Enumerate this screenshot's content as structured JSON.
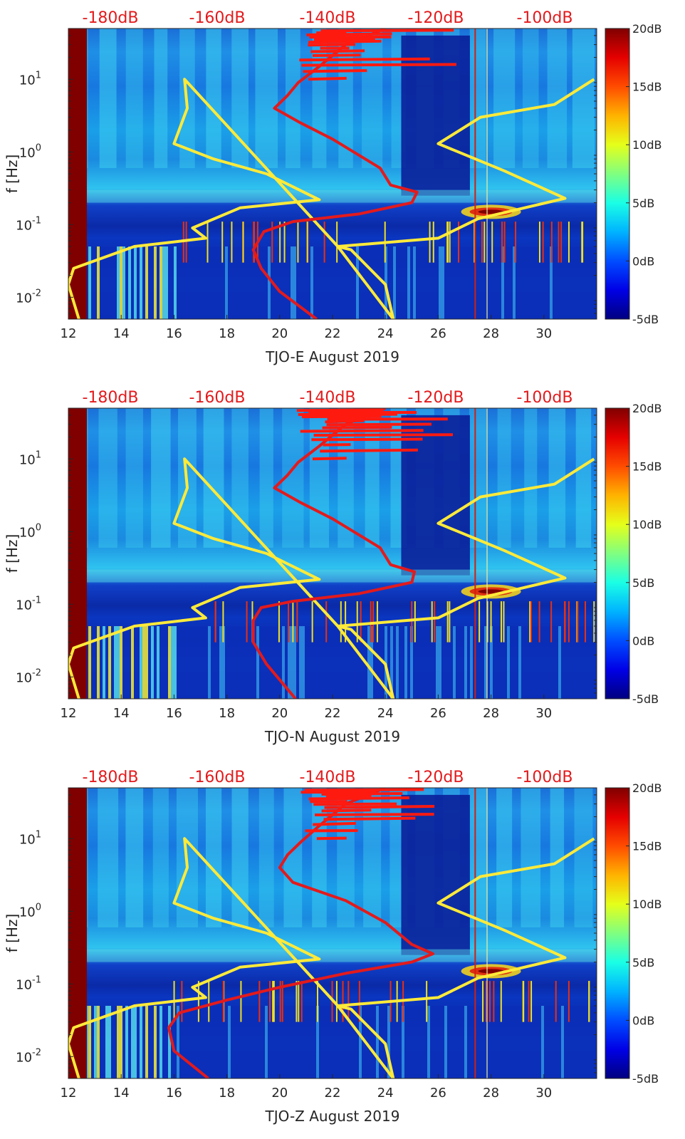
{
  "chart_data": [
    {
      "type": "heatmap",
      "title": "",
      "xlabel": "TJO-E August 2019",
      "ylabel": "f [Hz]",
      "xlim": [
        12,
        32
      ],
      "ylim": [
        0.005,
        50
      ],
      "xticks": [
        "12",
        "14",
        "16",
        "18",
        "20",
        "22",
        "24",
        "26",
        "28",
        "30"
      ],
      "yticks": [
        "10^-2",
        "10^-1",
        "10^0",
        "10^1"
      ],
      "top_axis_labels": [
        "-180dB",
        "-160dB",
        "-140dB",
        "-120dB",
        "-100dB"
      ],
      "colorbar": {
        "labels": [
          "20dB",
          "15dB",
          "10dB",
          "5dB",
          "0dB",
          "-5dB"
        ],
        "range": [
          -5,
          20
        ]
      },
      "series": [
        {
          "name": "yellow noise model",
          "color": "#ffea3a",
          "points": [
            [
              12.4,
              0.005
            ],
            [
              12.0,
              0.015
            ],
            [
              12.2,
              0.025
            ],
            [
              14.5,
              0.05
            ],
            [
              17.2,
              0.065
            ],
            [
              16.7,
              0.09
            ],
            [
              18.5,
              0.17
            ],
            [
              21.5,
              0.22
            ],
            [
              19.5,
              0.5
            ],
            [
              17.5,
              0.8
            ],
            [
              16.0,
              1.3
            ],
            [
              16.5,
              4
            ],
            [
              16.4,
              10
            ],
            [
              22.2,
              0.05
            ],
            [
              22.7,
              0.045
            ],
            [
              24.0,
              0.015
            ],
            [
              24.3,
              0.005
            ],
            [
              22.2,
              0.05
            ],
            [
              26.0,
              0.065
            ],
            [
              27.5,
              0.12
            ],
            [
              30.8,
              0.23
            ],
            [
              28.5,
              0.55
            ],
            [
              26.0,
              1.3
            ],
            [
              27.6,
              3
            ],
            [
              30.4,
              4.5
            ],
            [
              31.9,
              10
            ]
          ]
        },
        {
          "name": "red site noise",
          "color": "#e31a1c",
          "points": [
            [
              21.4,
              0.005
            ],
            [
              20.0,
              0.012
            ],
            [
              19.3,
              0.025
            ],
            [
              19.0,
              0.045
            ],
            [
              19.4,
              0.08
            ],
            [
              20.5,
              0.11
            ],
            [
              23.0,
              0.14
            ],
            [
              25.0,
              0.2
            ],
            [
              25.2,
              0.28
            ],
            [
              24.2,
              0.35
            ],
            [
              23.8,
              0.6
            ],
            [
              22.0,
              1.5
            ],
            [
              20.8,
              2.5
            ],
            [
              19.8,
              4
            ],
            [
              20.3,
              6
            ],
            [
              20.7,
              9
            ],
            [
              21.5,
              15
            ],
            [
              22.5,
              30
            ],
            [
              24.0,
              50
            ]
          ]
        }
      ]
    },
    {
      "type": "heatmap",
      "title": "",
      "xlabel": "TJO-N August 2019",
      "ylabel": "f [Hz]",
      "xlim": [
        12,
        32
      ],
      "ylim": [
        0.005,
        50
      ],
      "xticks": [
        "12",
        "14",
        "16",
        "18",
        "20",
        "22",
        "24",
        "26",
        "28",
        "30"
      ],
      "yticks": [
        "10^-2",
        "10^-1",
        "10^0",
        "10^1"
      ],
      "top_axis_labels": [
        "-180dB",
        "-160dB",
        "-140dB",
        "-120dB",
        "-100dB"
      ],
      "colorbar": {
        "labels": [
          "20dB",
          "15dB",
          "10dB",
          "5dB",
          "0dB",
          "-5dB"
        ],
        "range": [
          -5,
          20
        ]
      },
      "series": [
        {
          "name": "yellow noise model",
          "color": "#ffea3a",
          "points": [
            [
              12.4,
              0.005
            ],
            [
              12.0,
              0.015
            ],
            [
              12.2,
              0.025
            ],
            [
              14.5,
              0.05
            ],
            [
              17.2,
              0.065
            ],
            [
              16.7,
              0.09
            ],
            [
              18.5,
              0.17
            ],
            [
              21.5,
              0.22
            ],
            [
              19.5,
              0.5
            ],
            [
              17.5,
              0.8
            ],
            [
              16.0,
              1.3
            ],
            [
              16.5,
              4
            ],
            [
              16.4,
              10
            ],
            [
              22.2,
              0.05
            ],
            [
              22.7,
              0.045
            ],
            [
              24.0,
              0.015
            ],
            [
              24.3,
              0.005
            ],
            [
              22.2,
              0.05
            ],
            [
              26.0,
              0.065
            ],
            [
              27.5,
              0.12
            ],
            [
              30.8,
              0.23
            ],
            [
              28.5,
              0.55
            ],
            [
              26.0,
              1.3
            ],
            [
              27.6,
              3
            ],
            [
              30.4,
              4.5
            ],
            [
              31.9,
              10
            ]
          ]
        },
        {
          "name": "red site noise",
          "color": "#e31a1c",
          "points": [
            [
              20.6,
              0.005
            ],
            [
              19.5,
              0.015
            ],
            [
              19.0,
              0.03
            ],
            [
              19.0,
              0.06
            ],
            [
              19.3,
              0.09
            ],
            [
              20.5,
              0.11
            ],
            [
              23.0,
              0.14
            ],
            [
              25.0,
              0.2
            ],
            [
              25.1,
              0.28
            ],
            [
              24.2,
              0.35
            ],
            [
              23.8,
              0.6
            ],
            [
              22.0,
              1.5
            ],
            [
              20.8,
              2.5
            ],
            [
              19.8,
              4
            ],
            [
              20.3,
              6
            ],
            [
              20.7,
              9
            ],
            [
              21.5,
              15
            ],
            [
              22.5,
              30
            ],
            [
              24.0,
              50
            ]
          ]
        }
      ]
    },
    {
      "type": "heatmap",
      "title": "",
      "xlabel": "TJO-Z August 2019",
      "ylabel": "f [Hz]",
      "xlim": [
        12,
        32
      ],
      "ylim": [
        0.005,
        50
      ],
      "xticks": [
        "12",
        "14",
        "16",
        "18",
        "20",
        "22",
        "24",
        "26",
        "28",
        "30"
      ],
      "yticks": [
        "10^-2",
        "10^-1",
        "10^0",
        "10^1"
      ],
      "top_axis_labels": [
        "-180dB",
        "-160dB",
        "-140dB",
        "-120dB",
        "-100dB"
      ],
      "colorbar": {
        "labels": [
          "20dB",
          "15dB",
          "10dB",
          "5dB",
          "0dB",
          "-5dB"
        ],
        "range": [
          -5,
          20
        ]
      },
      "series": [
        {
          "name": "yellow noise model",
          "color": "#ffea3a",
          "points": [
            [
              12.4,
              0.005
            ],
            [
              12.0,
              0.015
            ],
            [
              12.2,
              0.025
            ],
            [
              14.5,
              0.05
            ],
            [
              17.2,
              0.065
            ],
            [
              16.7,
              0.09
            ],
            [
              18.5,
              0.17
            ],
            [
              21.5,
              0.22
            ],
            [
              19.5,
              0.5
            ],
            [
              17.5,
              0.8
            ],
            [
              16.0,
              1.3
            ],
            [
              16.5,
              4
            ],
            [
              16.4,
              10
            ],
            [
              22.2,
              0.05
            ],
            [
              22.7,
              0.045
            ],
            [
              24.0,
              0.015
            ],
            [
              24.3,
              0.005
            ],
            [
              22.2,
              0.05
            ],
            [
              26.0,
              0.065
            ],
            [
              27.5,
              0.12
            ],
            [
              30.8,
              0.23
            ],
            [
              28.5,
              0.55
            ],
            [
              26.0,
              1.3
            ],
            [
              27.6,
              3
            ],
            [
              30.4,
              4.5
            ],
            [
              31.9,
              10
            ]
          ]
        },
        {
          "name": "red site noise",
          "color": "#e31a1c",
          "points": [
            [
              17.3,
              0.005
            ],
            [
              16.0,
              0.012
            ],
            [
              15.8,
              0.025
            ],
            [
              16.2,
              0.04
            ],
            [
              18.0,
              0.06
            ],
            [
              20.0,
              0.09
            ],
            [
              22.5,
              0.14
            ],
            [
              25.0,
              0.2
            ],
            [
              25.8,
              0.26
            ],
            [
              25.0,
              0.35
            ],
            [
              24.0,
              0.7
            ],
            [
              22.5,
              1.4
            ],
            [
              20.5,
              2.5
            ],
            [
              20.0,
              4
            ],
            [
              20.3,
              6
            ],
            [
              20.8,
              9
            ],
            [
              21.5,
              15
            ],
            [
              22.5,
              30
            ],
            [
              24.0,
              50
            ]
          ]
        }
      ]
    }
  ]
}
